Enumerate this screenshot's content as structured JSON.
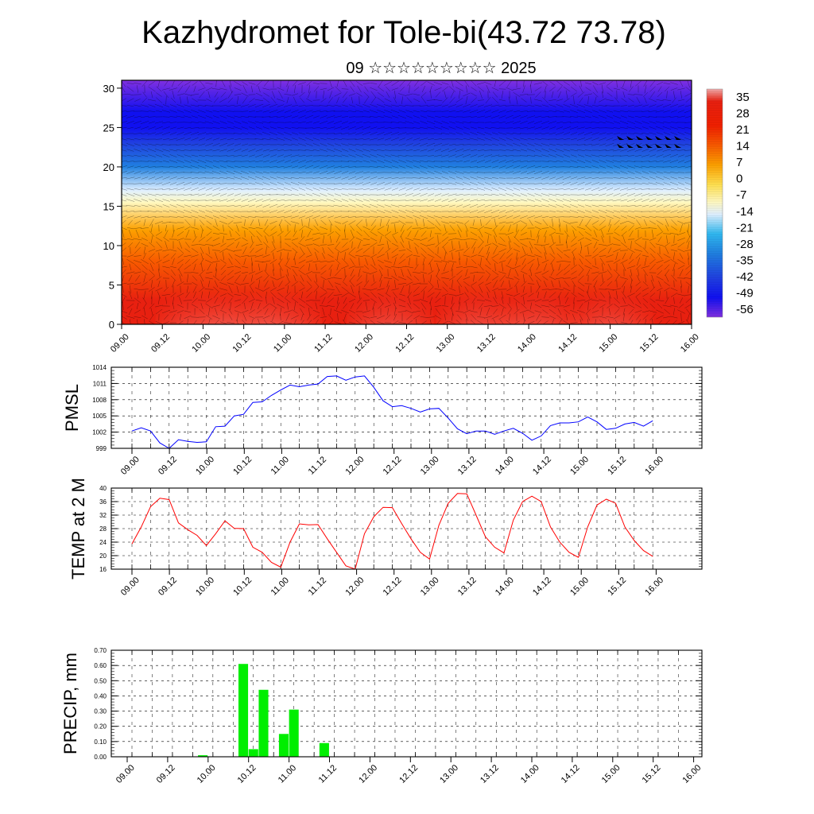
{
  "header": {
    "title": "Kazhydromet for Tole-bi(43.72 73.78)",
    "subtitle": "09 ☆☆☆☆☆☆☆☆☆ 2025"
  },
  "time_ticks": [
    "09.00",
    "09.12",
    "10.00",
    "10.12",
    "11.00",
    "11.12",
    "12.00",
    "12.12",
    "13.00",
    "13.12",
    "14.00",
    "14.12",
    "15.00",
    "15.12",
    "16.00"
  ],
  "chart_data": [
    {
      "id": "cross_section",
      "type": "heatmap",
      "title": "",
      "xlabel": "",
      "ylabel": "",
      "ylim": [
        0,
        30
      ],
      "yticks": [
        0,
        5,
        10,
        15,
        20,
        25,
        30
      ],
      "colorbar": {
        "labels": [
          "35",
          "28",
          "21",
          "14",
          "7",
          "0",
          "-7",
          "-14",
          "-21",
          "-28",
          "-35",
          "-42",
          "-49",
          "-56"
        ],
        "stops": [
          {
            "value": 35,
            "color": "#f2aaaa"
          },
          {
            "value": 30,
            "color": "#e82010"
          },
          {
            "value": 20,
            "color": "#f02000"
          },
          {
            "value": 12,
            "color": "#f85a00"
          },
          {
            "value": 4,
            "color": "#fca000"
          },
          {
            "value": -4,
            "color": "#ffe050"
          },
          {
            "value": -11,
            "color": "#fff8c0"
          },
          {
            "value": -16,
            "color": "#e0f0ff"
          },
          {
            "value": -24,
            "color": "#30b8f0"
          },
          {
            "value": -32,
            "color": "#2080e0"
          },
          {
            "value": -42,
            "color": "#2040e0"
          },
          {
            "value": -50,
            "color": "#1010f0"
          },
          {
            "value": -58,
            "color": "#8030e0"
          }
        ]
      },
      "temperature_profile": [
        {
          "height": 0,
          "value": 30
        },
        {
          "height": 3,
          "value": 26
        },
        {
          "height": 8,
          "value": 14
        },
        {
          "height": 12,
          "value": 2
        },
        {
          "height": 15.5,
          "value": -10
        },
        {
          "height": 17,
          "value": -16
        },
        {
          "height": 20,
          "value": -30
        },
        {
          "height": 23,
          "value": -42
        },
        {
          "height": 25,
          "value": -52
        },
        {
          "height": 27,
          "value": -50
        },
        {
          "height": 31,
          "value": -58
        }
      ]
    },
    {
      "id": "pmsl",
      "type": "line",
      "title": "",
      "xlabel": "",
      "ylabel": "PMSL",
      "ylim": [
        999,
        1014
      ],
      "yticks": [
        999,
        1002,
        1005,
        1008,
        1011,
        1014
      ],
      "color": "#0000ff",
      "x_step_hours": 3,
      "values": [
        1002.2,
        1002.8,
        1002.2,
        1000.0,
        999.0,
        1000.6,
        1000.3,
        1000.1,
        1000.2,
        1003.0,
        1003.1,
        1005.0,
        1005.3,
        1007.5,
        1007.6,
        1008.8,
        1009.8,
        1010.7,
        1010.4,
        1010.7,
        1010.9,
        1012.3,
        1012.4,
        1011.6,
        1012.2,
        1012.4,
        1010.3,
        1007.8,
        1006.7,
        1006.9,
        1006.4,
        1005.7,
        1006.3,
        1006.4,
        1004.6,
        1002.6,
        1001.7,
        1002.2,
        1002.2,
        1001.6,
        1002.2,
        1002.7,
        1001.8,
        1000.5,
        1001.3,
        1003.2,
        1003.7,
        1003.7,
        1003.9,
        1004.8,
        1003.9,
        1002.5,
        1002.7,
        1003.5,
        1003.8,
        1003.1,
        1004.1
      ]
    },
    {
      "id": "temp2m",
      "type": "line",
      "title": "",
      "xlabel": "",
      "ylabel": "TEMP at 2 M",
      "ylim": [
        16,
        40
      ],
      "yticks": [
        16,
        20,
        24,
        28,
        32,
        36,
        40
      ],
      "color": "#ff0000",
      "x_step_hours": 3,
      "values": [
        23.5,
        28.5,
        34.5,
        37.0,
        36.6,
        29.7,
        27.7,
        26.0,
        23.0,
        26.5,
        30.3,
        28.1,
        28.0,
        22.5,
        21.0,
        18.0,
        16.6,
        24.0,
        29.4,
        29.1,
        29.2,
        25.0,
        21.0,
        17.0,
        16.0,
        26.5,
        31.5,
        34.3,
        34.2,
        29.5,
        25.0,
        21.0,
        19.0,
        29.0,
        35.5,
        38.4,
        38.3,
        32.0,
        25.6,
        22.5,
        20.8,
        30.5,
        36.0,
        37.6,
        36.0,
        28.5,
        24.0,
        21.0,
        19.5,
        28.5,
        35.0,
        36.7,
        35.5,
        28.5,
        24.5,
        21.5,
        19.8
      ]
    },
    {
      "id": "precip",
      "type": "bar",
      "title": "",
      "xlabel": "",
      "ylabel": "PRECIP, mm",
      "ylim": [
        0,
        0.7
      ],
      "yticks": [
        "0.00",
        "0.10",
        "0.20",
        "0.30",
        "0.40",
        "0.50",
        "0.60",
        "0.70"
      ],
      "color": "#00ee00",
      "x_step_hours": 3,
      "values": [
        0,
        0,
        0,
        0,
        0,
        0,
        0,
        0.01,
        0,
        0,
        0,
        0.61,
        0.05,
        0.44,
        0,
        0.15,
        0.31,
        0,
        0,
        0.09,
        0,
        0,
        0,
        0,
        0,
        0,
        0,
        0,
        0,
        0,
        0,
        0,
        0,
        0,
        0,
        0,
        0,
        0,
        0,
        0,
        0,
        0,
        0,
        0,
        0,
        0,
        0,
        0,
        0,
        0,
        0,
        0,
        0,
        0,
        0,
        0
      ]
    }
  ]
}
